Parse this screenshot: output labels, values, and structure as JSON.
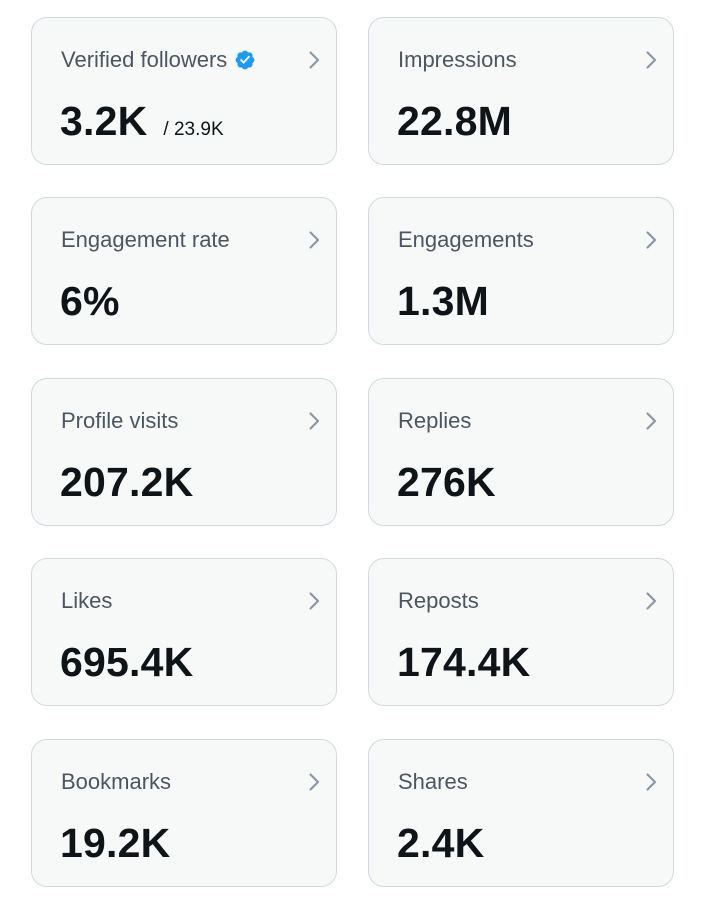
{
  "colors": {
    "card_background": "#f7f9f9",
    "card_border": "#cfd9de",
    "label_text": "#4a5661",
    "value_text": "#0f1419",
    "chevron": "#8b98a5",
    "verified_badge": "#1d9bf0"
  },
  "metrics": [
    {
      "label": "Verified followers",
      "value": "3.2K",
      "subvalue": "/ 23.9K",
      "icon": "verified-badge-icon"
    },
    {
      "label": "Impressions",
      "value": "22.8M"
    },
    {
      "label": "Engagement rate",
      "value": "6%"
    },
    {
      "label": "Engagements",
      "value": "1.3M"
    },
    {
      "label": "Profile visits",
      "value": "207.2K"
    },
    {
      "label": "Replies",
      "value": "276K"
    },
    {
      "label": "Likes",
      "value": "695.4K"
    },
    {
      "label": "Reposts",
      "value": "174.4K"
    },
    {
      "label": "Bookmarks",
      "value": "19.2K"
    },
    {
      "label": "Shares",
      "value": "2.4K"
    }
  ]
}
